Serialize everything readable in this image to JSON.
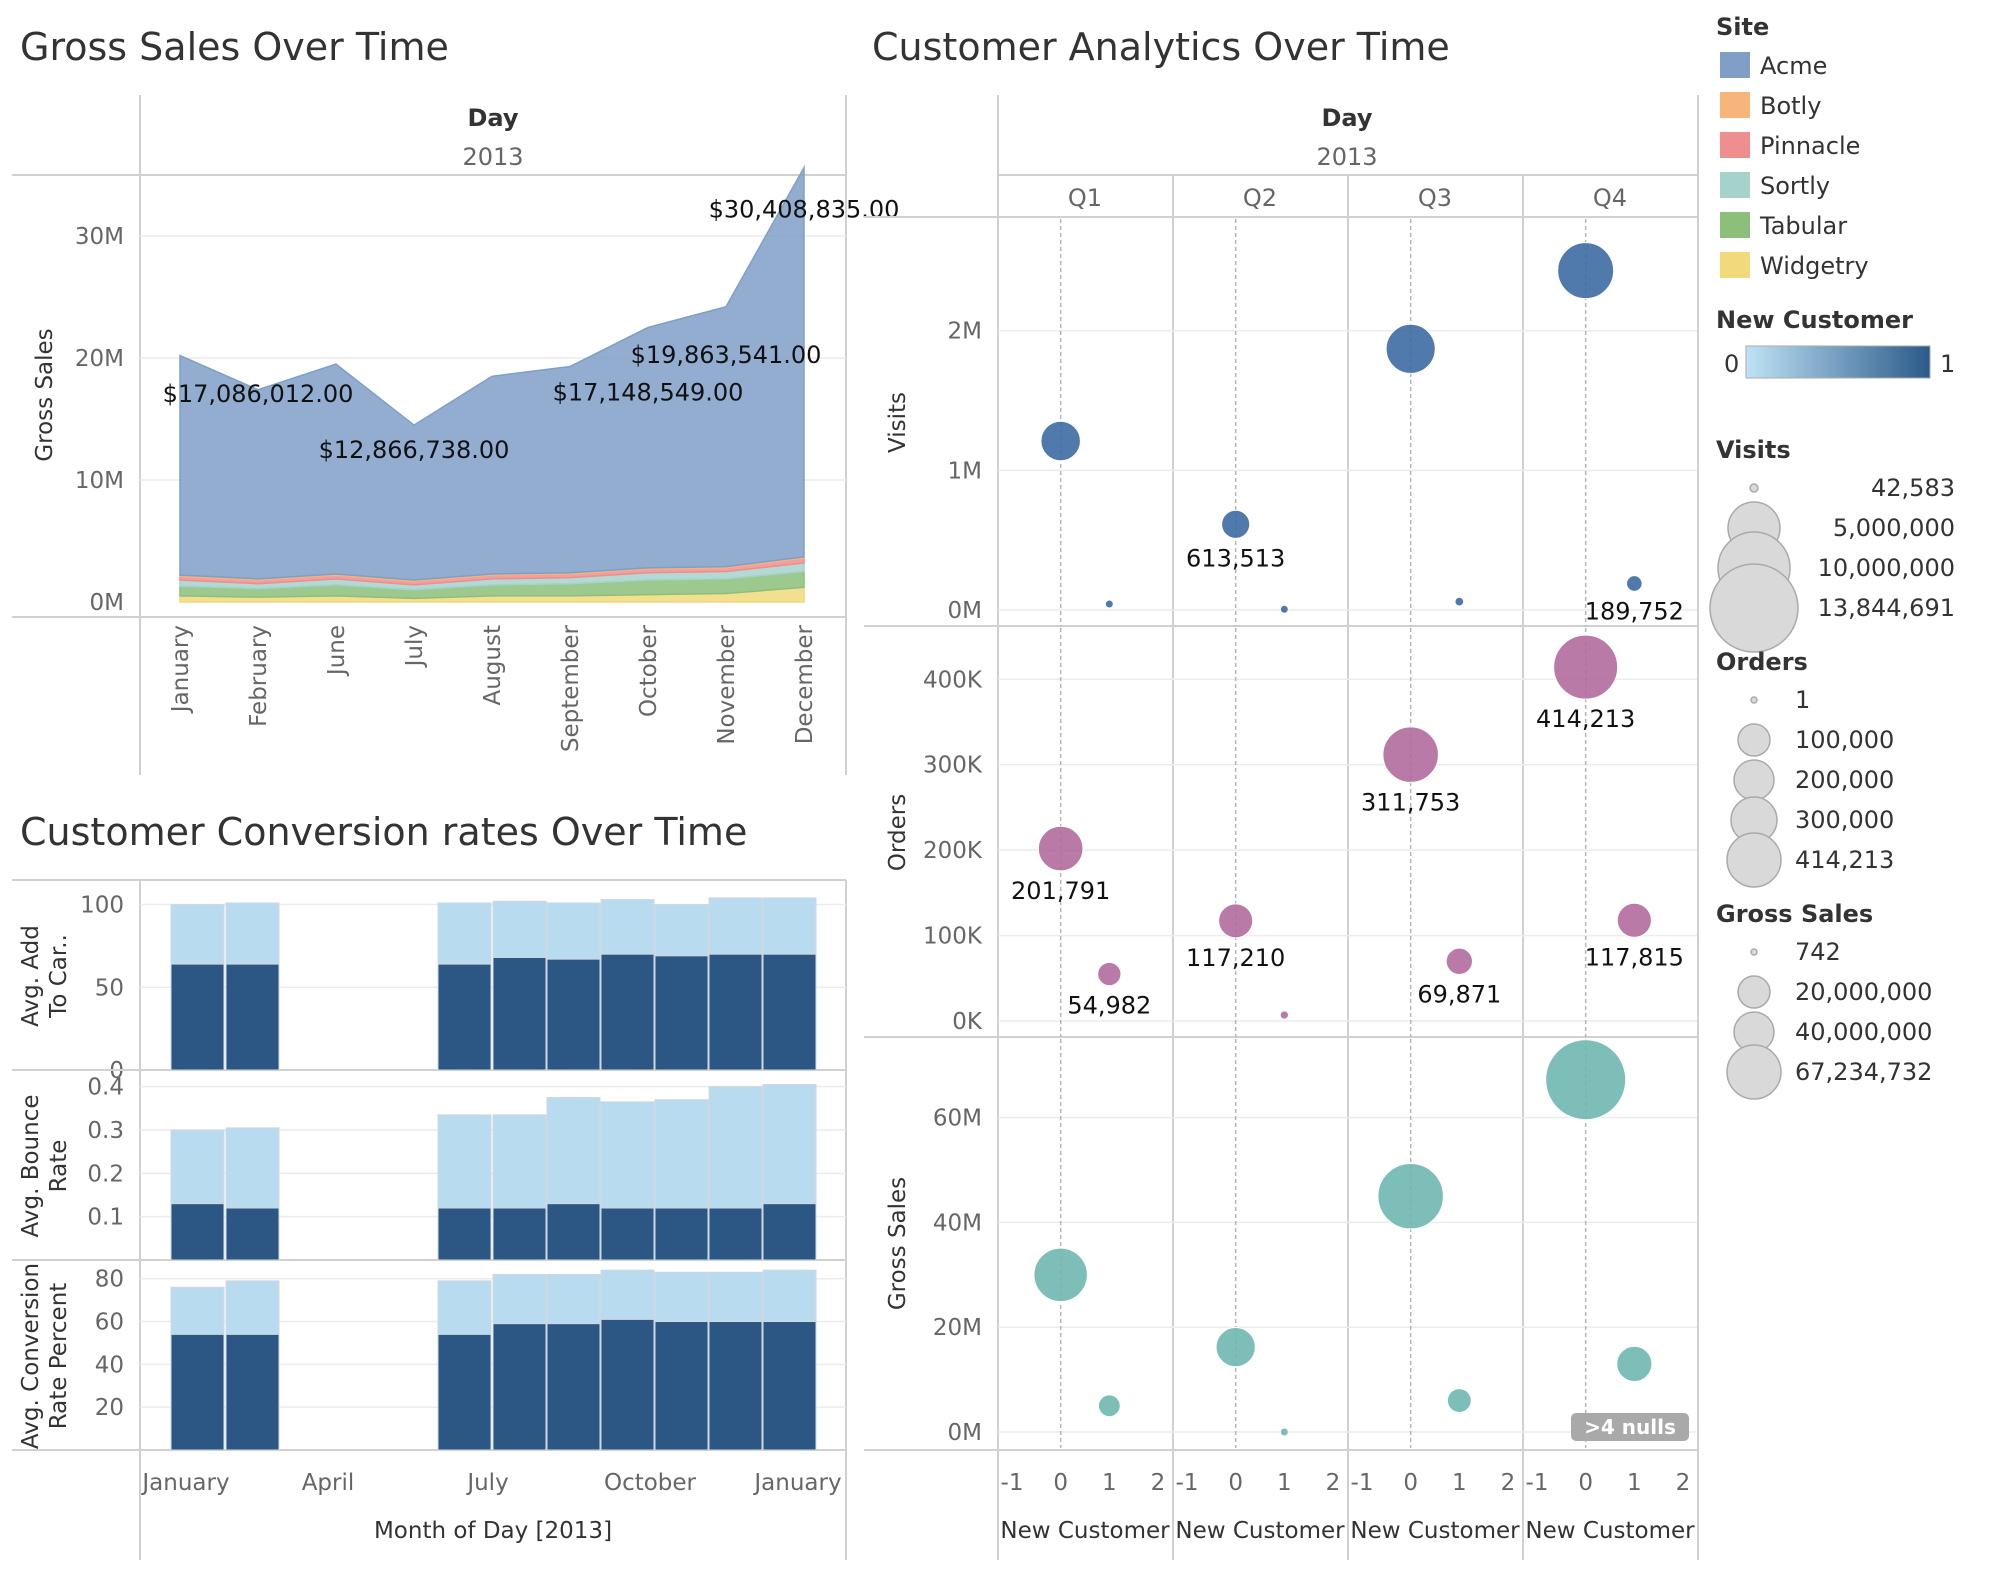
{
  "chart_data": [
    {
      "type": "area",
      "title": "Gross Sales Over Time",
      "header": "Day",
      "subheader": "2013",
      "ylabel": "Gross Sales",
      "ylim": [
        0,
        35000000
      ],
      "yticks": [
        "0M",
        "10M",
        "20M",
        "30M"
      ],
      "ytick_values": [
        0,
        10000000,
        20000000,
        30000000
      ],
      "categories": [
        "January",
        "February",
        "June",
        "July",
        "August",
        "September",
        "October",
        "November",
        "December"
      ],
      "stacked": true,
      "series": [
        {
          "name": "Widgetry",
          "color": "#f1d97c",
          "values": [
            500000,
            400000,
            500000,
            300000,
            500000,
            500000,
            600000,
            700000,
            1200000
          ]
        },
        {
          "name": "Tabular",
          "color": "#8cc07a",
          "values": [
            800000,
            700000,
            900000,
            700000,
            900000,
            1000000,
            1200000,
            1200000,
            1300000
          ]
        },
        {
          "name": "Sortly",
          "color": "#a6d2cc",
          "values": [
            500000,
            400000,
            500000,
            400000,
            500000,
            500000,
            600000,
            600000,
            700000
          ]
        },
        {
          "name": "Pinnacle",
          "color": "#ee8e8e",
          "values": [
            300000,
            300000,
            300000,
            300000,
            300000,
            300000,
            300000,
            300000,
            400000
          ]
        },
        {
          "name": "Botly",
          "color": "#f7b57a",
          "values": [
            100000,
            100000,
            100000,
            100000,
            100000,
            100000,
            100000,
            100000,
            100000
          ]
        },
        {
          "name": "Acme",
          "color": "#7f9fc7",
          "values": [
            18000000,
            15500000,
            17200000,
            12700000,
            16200000,
            16900000,
            19700000,
            21300000,
            31900000
          ]
        }
      ],
      "annotations": [
        {
          "text": "$30,408,835.00",
          "x": "December",
          "y": 31500000
        },
        {
          "text": "$17,086,012.00",
          "x": "February",
          "y": 16400000
        },
        {
          "text": "$12,866,738.00",
          "x": "July",
          "y": 11800000
        },
        {
          "text": "$19,863,541.00",
          "x": "November",
          "y": 19600000
        },
        {
          "text": "$17,148,549.00",
          "x": "October",
          "y": 16500000
        }
      ]
    },
    {
      "type": "bar",
      "title": "Customer Conversion rates Over Time",
      "xlabel": "Month of Day [2013]",
      "x_ticks": [
        "January",
        "April",
        "July",
        "October",
        "January"
      ],
      "categories": [
        "2013-01",
        "2013-02",
        "2013-06",
        "2013-07",
        "2013-08",
        "2013-09",
        "2013-10",
        "2013-11",
        "2013-12"
      ],
      "panels": [
        {
          "ylabel": "Avg. Add To Car..",
          "ylim": [
            0,
            110
          ],
          "yticks": [
            0,
            50,
            100
          ],
          "series": [
            {
              "values": [
                64,
                64,
                64,
                68,
                67,
                70,
                69,
                70,
                70
              ]
            },
            {
              "values": [
                100,
                101,
                101,
                102,
                101,
                103,
                100,
                104,
                104
              ]
            }
          ]
        },
        {
          "ylabel": "Avg. Bounce Rate",
          "ylim": [
            0,
            0.42
          ],
          "yticks": [
            0.1,
            0.2,
            0.3,
            0.4
          ],
          "series": [
            {
              "values": [
                0.13,
                0.12,
                0.12,
                0.12,
                0.13,
                0.12,
                0.12,
                0.12,
                0.13
              ]
            },
            {
              "values": [
                0.3,
                0.305,
                0.335,
                0.335,
                0.375,
                0.365,
                0.37,
                0.4,
                0.405
              ]
            }
          ]
        },
        {
          "ylabel": "Avg. Conversion Rate Percent",
          "ylim": [
            0,
            85
          ],
          "yticks": [
            20,
            40,
            60,
            80
          ],
          "series": [
            {
              "values": [
                54,
                54,
                54,
                59,
                59,
                61,
                60,
                60,
                60
              ]
            },
            {
              "values": [
                76,
                79,
                79,
                82,
                82,
                84,
                83,
                83,
                84
              ]
            }
          ]
        }
      ]
    },
    {
      "type": "scatter",
      "title": "Customer Analytics Over Time",
      "header": "Day",
      "subheader": "2013",
      "quarters": [
        "Q1",
        "Q2",
        "Q3",
        "Q4"
      ],
      "xlabel": "New Customer",
      "x_ticks": [
        "-1",
        "0",
        "1",
        "2"
      ],
      "xlim": [
        -1,
        2
      ],
      "panels": [
        {
          "ylabel": "Visits",
          "ylim": [
            0,
            2800000
          ],
          "yticks": [
            "0M",
            "1M",
            "2M"
          ],
          "ytick_values": [
            0,
            1000000,
            2000000
          ],
          "color": "#3d6ba3",
          "points": [
            {
              "quarter": "Q1",
              "x": 0,
              "y": 1210000,
              "size": 1210000,
              "label": ""
            },
            {
              "quarter": "Q1",
              "x": 1,
              "y": 42583,
              "size": 42583,
              "label": ""
            },
            {
              "quarter": "Q2",
              "x": 0,
              "y": 613513,
              "size": 613513,
              "label": "613,513"
            },
            {
              "quarter": "Q2",
              "x": 1,
              "y": 5000,
              "size": 5000,
              "label": ""
            },
            {
              "quarter": "Q3",
              "x": 0,
              "y": 1870000,
              "size": 1870000,
              "label": ""
            },
            {
              "quarter": "Q3",
              "x": 1,
              "y": 60000,
              "size": 60000,
              "label": ""
            },
            {
              "quarter": "Q4",
              "x": 0,
              "y": 2430000,
              "size": 2430000,
              "label": ""
            },
            {
              "quarter": "Q4",
              "x": 1,
              "y": 189752,
              "size": 189752,
              "label": "189,752"
            }
          ]
        },
        {
          "ylabel": "Orders",
          "ylim": [
            0,
            460000
          ],
          "yticks": [
            "0K",
            "100K",
            "200K",
            "300K",
            "400K"
          ],
          "ytick_values": [
            0,
            100000,
            200000,
            300000,
            400000
          ],
          "color": "#b26c9f",
          "points": [
            {
              "quarter": "Q1",
              "x": 0,
              "y": 201791,
              "size": 201791,
              "label": "201,791"
            },
            {
              "quarter": "Q1",
              "x": 1,
              "y": 54982,
              "size": 54982,
              "label": "54,982"
            },
            {
              "quarter": "Q2",
              "x": 0,
              "y": 117210,
              "size": 117210,
              "label": "117,210"
            },
            {
              "quarter": "Q2",
              "x": 1,
              "y": 7000,
              "size": 7000,
              "label": ""
            },
            {
              "quarter": "Q3",
              "x": 0,
              "y": 311753,
              "size": 311753,
              "label": "311,753"
            },
            {
              "quarter": "Q3",
              "x": 1,
              "y": 69871,
              "size": 69871,
              "label": "69,871"
            },
            {
              "quarter": "Q4",
              "x": 0,
              "y": 414213,
              "size": 414213,
              "label": "414,213"
            },
            {
              "quarter": "Q4",
              "x": 1,
              "y": 117815,
              "size": 117815,
              "label": "117,815"
            }
          ]
        },
        {
          "ylabel": "Gross Sales",
          "ylim": [
            0,
            75000000
          ],
          "yticks": [
            "0M",
            "20M",
            "40M",
            "60M"
          ],
          "ytick_values": [
            0,
            20000000,
            40000000,
            60000000
          ],
          "color": "#6fb8b0",
          "points": [
            {
              "quarter": "Q1",
              "x": 0,
              "y": 30000000,
              "size": 30000000,
              "label": ""
            },
            {
              "quarter": "Q1",
              "x": 1,
              "y": 5000000,
              "size": 5000000,
              "label": ""
            },
            {
              "quarter": "Q2",
              "x": 0,
              "y": 16200000,
              "size": 16200000,
              "label": ""
            },
            {
              "quarter": "Q2",
              "x": 1,
              "y": 742,
              "size": 742,
              "label": ""
            },
            {
              "quarter": "Q3",
              "x": 0,
              "y": 45000000,
              "size": 45000000,
              "label": ""
            },
            {
              "quarter": "Q3",
              "x": 1,
              "y": 6000000,
              "size": 6000000,
              "label": ""
            },
            {
              "quarter": "Q4",
              "x": 0,
              "y": 67234732,
              "size": 67234732,
              "label": ""
            },
            {
              "quarter": "Q4",
              "x": 1,
              "y": 13000000,
              "size": 13000000,
              "label": ""
            }
          ],
          "null_badge": ">4 nulls"
        }
      ]
    }
  ],
  "legend": {
    "site": {
      "title": "Site",
      "items": [
        {
          "label": "Acme",
          "color": "#7f9fc7"
        },
        {
          "label": "Botly",
          "color": "#f7b57a"
        },
        {
          "label": "Pinnacle",
          "color": "#ee8e8e"
        },
        {
          "label": "Sortly",
          "color": "#a6d2cc"
        },
        {
          "label": "Tabular",
          "color": "#8cc07a"
        },
        {
          "label": "Widgetry",
          "color": "#f1d97c"
        }
      ]
    },
    "new_customer": {
      "title": "New Customer",
      "min": "0",
      "max": "1",
      "color_from": "#bfe3f5",
      "color_to": "#2b5a8a"
    },
    "visits": {
      "title": "Visits",
      "values": [
        "42,583",
        "5,000,000",
        "10,000,000",
        "13,844,691"
      ]
    },
    "orders": {
      "title": "Orders",
      "values": [
        "1",
        "100,000",
        "200,000",
        "300,000",
        "414,213"
      ]
    },
    "gross_sales": {
      "title": "Gross Sales",
      "values": [
        "742",
        "20,000,000",
        "40,000,000",
        "67,234,732"
      ]
    }
  }
}
